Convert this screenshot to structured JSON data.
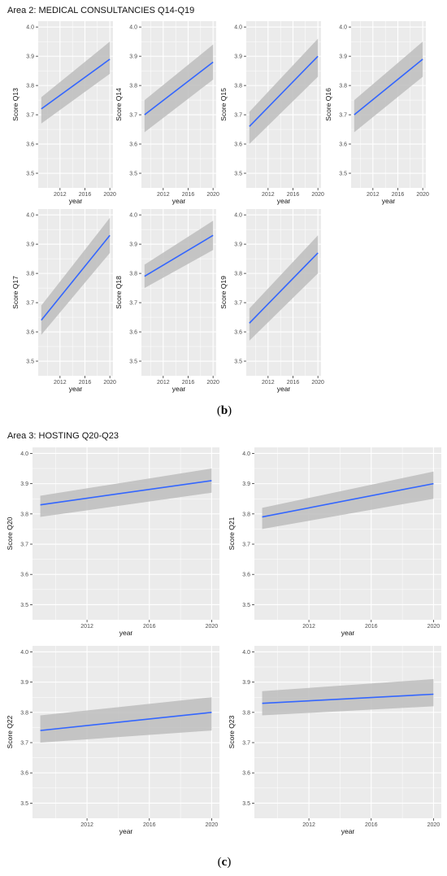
{
  "area2": {
    "title": "Area 2: MEDICAL CONSULTANCIES Q14-Q19",
    "caption": "b"
  },
  "area3": {
    "title": "Area 3: HOSTING Q20-Q23",
    "caption": "c"
  },
  "colors": {
    "panel_bg": "#ebebeb",
    "grid": "#ffffff",
    "line": "#3366ff",
    "ribbon": "#bdbdbd"
  },
  "chart_data": [
    {
      "type": "line",
      "ylabel": "Score Q13",
      "xlabel": "year",
      "x": [
        2009,
        2020
      ],
      "y": [
        3.72,
        3.89
      ],
      "lower": [
        3.67,
        3.84
      ],
      "upper": [
        3.76,
        3.95
      ],
      "xticks": [
        2012,
        2016,
        2020
      ],
      "yticks": [
        3.5,
        3.6,
        3.7,
        3.8,
        3.9,
        4.0
      ],
      "ylim": [
        3.45,
        4.02
      ],
      "xlim": [
        2008.5,
        2020.5
      ],
      "grid": true
    },
    {
      "type": "line",
      "ylabel": "Score Q14",
      "xlabel": "year",
      "x": [
        2009,
        2020
      ],
      "y": [
        3.7,
        3.88
      ],
      "lower": [
        3.64,
        3.82
      ],
      "upper": [
        3.75,
        3.94
      ],
      "xticks": [
        2012,
        2016,
        2020
      ],
      "yticks": [
        3.5,
        3.6,
        3.7,
        3.8,
        3.9,
        4.0
      ],
      "ylim": [
        3.45,
        4.02
      ],
      "xlim": [
        2008.5,
        2020.5
      ],
      "grid": true
    },
    {
      "type": "line",
      "ylabel": "Score Q15",
      "xlabel": "year",
      "x": [
        2009,
        2020
      ],
      "y": [
        3.66,
        3.9
      ],
      "lower": [
        3.6,
        3.83
      ],
      "upper": [
        3.71,
        3.96
      ],
      "xticks": [
        2012,
        2016,
        2020
      ],
      "yticks": [
        3.5,
        3.6,
        3.7,
        3.8,
        3.9,
        4.0
      ],
      "ylim": [
        3.45,
        4.02
      ],
      "xlim": [
        2008.5,
        2020.5
      ],
      "grid": true
    },
    {
      "type": "line",
      "ylabel": "Score Q16",
      "xlabel": "year",
      "x": [
        2009,
        2020
      ],
      "y": [
        3.7,
        3.89
      ],
      "lower": [
        3.64,
        3.83
      ],
      "upper": [
        3.75,
        3.95
      ],
      "xticks": [
        2012,
        2016,
        2020
      ],
      "yticks": [
        3.5,
        3.6,
        3.7,
        3.8,
        3.9,
        4.0
      ],
      "ylim": [
        3.45,
        4.02
      ],
      "xlim": [
        2008.5,
        2020.5
      ],
      "grid": true
    },
    {
      "type": "line",
      "ylabel": "Score Q17",
      "xlabel": "year",
      "x": [
        2009,
        2020
      ],
      "y": [
        3.64,
        3.93
      ],
      "lower": [
        3.59,
        3.87
      ],
      "upper": [
        3.69,
        3.99
      ],
      "xticks": [
        2012,
        2016,
        2020
      ],
      "yticks": [
        3.5,
        3.6,
        3.7,
        3.8,
        3.9,
        4.0
      ],
      "ylim": [
        3.45,
        4.02
      ],
      "xlim": [
        2008.5,
        2020.5
      ],
      "grid": true
    },
    {
      "type": "line",
      "ylabel": "Score Q18",
      "xlabel": "year",
      "x": [
        2009,
        2020
      ],
      "y": [
        3.79,
        3.93
      ],
      "lower": [
        3.75,
        3.88
      ],
      "upper": [
        3.83,
        3.98
      ],
      "xticks": [
        2012,
        2016,
        2020
      ],
      "yticks": [
        3.5,
        3.6,
        3.7,
        3.8,
        3.9,
        4.0
      ],
      "ylim": [
        3.45,
        4.02
      ],
      "xlim": [
        2008.5,
        2020.5
      ],
      "grid": true
    },
    {
      "type": "line",
      "ylabel": "Score Q19",
      "xlabel": "year",
      "x": [
        2009,
        2020
      ],
      "y": [
        3.63,
        3.87
      ],
      "lower": [
        3.57,
        3.8
      ],
      "upper": [
        3.68,
        3.93
      ],
      "xticks": [
        2012,
        2016,
        2020
      ],
      "yticks": [
        3.5,
        3.6,
        3.7,
        3.8,
        3.9,
        4.0
      ],
      "ylim": [
        3.45,
        4.02
      ],
      "xlim": [
        2008.5,
        2020.5
      ],
      "grid": true
    },
    {
      "type": "line",
      "ylabel": "Score Q20",
      "xlabel": "year",
      "x": [
        2009,
        2020
      ],
      "y": [
        3.83,
        3.91
      ],
      "lower": [
        3.79,
        3.87
      ],
      "upper": [
        3.86,
        3.95
      ],
      "xticks": [
        2012,
        2016,
        2020
      ],
      "yticks": [
        3.5,
        3.6,
        3.7,
        3.8,
        3.9,
        4.0
      ],
      "ylim": [
        3.45,
        4.02
      ],
      "xlim": [
        2008.5,
        2020.5
      ],
      "grid": true
    },
    {
      "type": "line",
      "ylabel": "Score Q21",
      "xlabel": "year",
      "x": [
        2009,
        2020
      ],
      "y": [
        3.79,
        3.9
      ],
      "lower": [
        3.75,
        3.85
      ],
      "upper": [
        3.82,
        3.94
      ],
      "xticks": [
        2012,
        2016,
        2020
      ],
      "yticks": [
        3.5,
        3.6,
        3.7,
        3.8,
        3.9,
        4.0
      ],
      "ylim": [
        3.45,
        4.02
      ],
      "xlim": [
        2008.5,
        2020.5
      ],
      "grid": true
    },
    {
      "type": "line",
      "ylabel": "Score Q22",
      "xlabel": "year",
      "x": [
        2009,
        2020
      ],
      "y": [
        3.74,
        3.8
      ],
      "lower": [
        3.7,
        3.74
      ],
      "upper": [
        3.79,
        3.85
      ],
      "xticks": [
        2012,
        2016,
        2020
      ],
      "yticks": [
        3.5,
        3.6,
        3.7,
        3.8,
        3.9,
        4.0
      ],
      "ylim": [
        3.45,
        4.02
      ],
      "xlim": [
        2008.5,
        2020.5
      ],
      "grid": true
    },
    {
      "type": "line",
      "ylabel": "Score Q23",
      "xlabel": "year",
      "x": [
        2009,
        2020
      ],
      "y": [
        3.83,
        3.86
      ],
      "lower": [
        3.79,
        3.82
      ],
      "upper": [
        3.87,
        3.91
      ],
      "xticks": [
        2012,
        2016,
        2020
      ],
      "yticks": [
        3.5,
        3.6,
        3.7,
        3.8,
        3.9,
        4.0
      ],
      "ylim": [
        3.45,
        4.02
      ],
      "xlim": [
        2008.5,
        2020.5
      ],
      "grid": true
    }
  ]
}
